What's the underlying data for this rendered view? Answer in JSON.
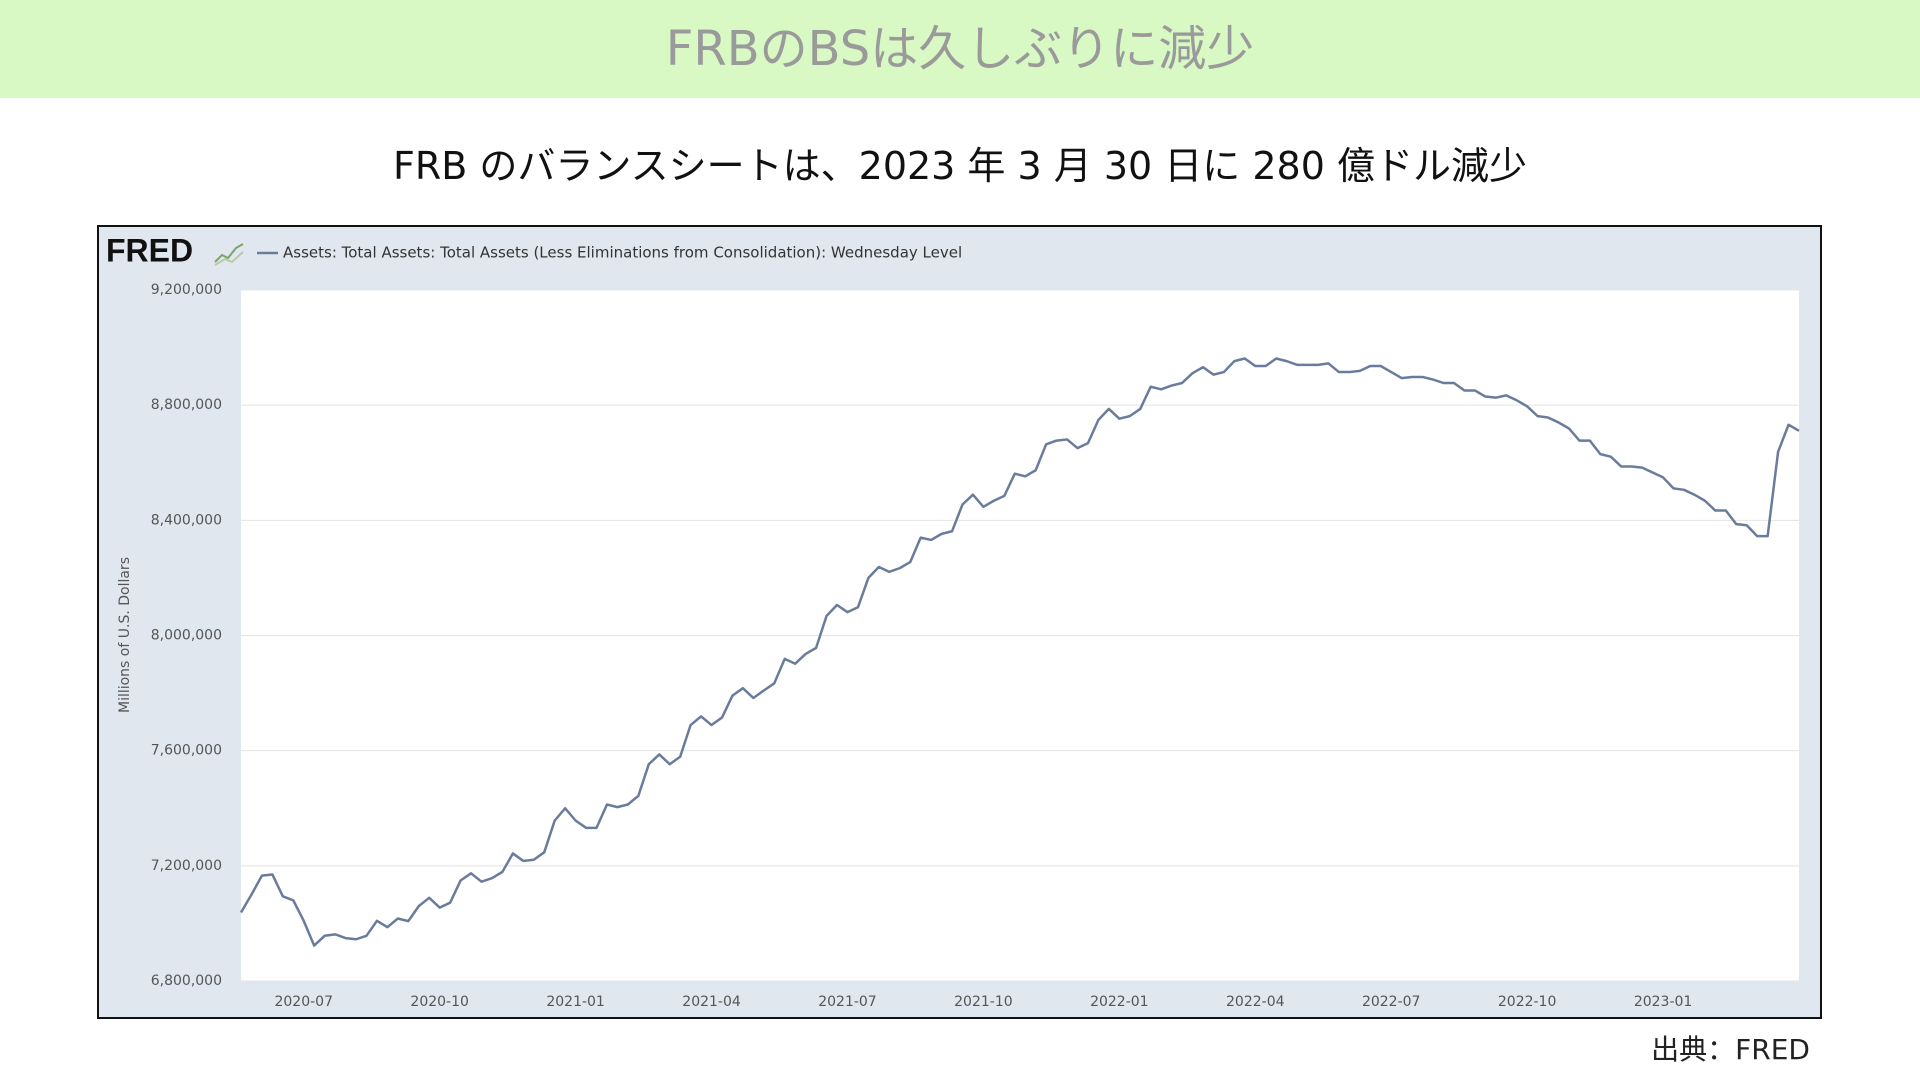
{
  "header": {
    "title": "FRBのBSは久しぶりに減少"
  },
  "subtitle": "FRB のバランスシートは、2023 年 3 月 30 日に 280 億ドル減少",
  "source": "出典：FRED",
  "chart_data": {
    "type": "line",
    "logo": "FRED",
    "ylabel": "Millions of U.S. Dollars",
    "grid": true,
    "ylim": [
      6800000,
      9200000
    ],
    "yticks": [
      {
        "value": 6800000,
        "label": "6,800,000"
      },
      {
        "value": 7200000,
        "label": "7,200,000"
      },
      {
        "value": 7600000,
        "label": "7,600,000"
      },
      {
        "value": 8000000,
        "label": "8,000,000"
      },
      {
        "value": 8400000,
        "label": "8,400,000"
      },
      {
        "value": 8800000,
        "label": "8,800,000"
      },
      {
        "value": 9200000,
        "label": "9,200,000"
      }
    ],
    "categories": [
      null,
      null,
      null,
      null,
      null,
      null,
      "2020-07",
      null,
      null,
      null,
      null,
      null,
      null,
      null,
      null,
      null,
      null,
      null,
      null,
      "2020-10",
      null,
      null,
      null,
      null,
      null,
      null,
      null,
      null,
      null,
      null,
      null,
      null,
      "2021-01",
      null,
      null,
      null,
      null,
      null,
      null,
      null,
      null,
      null,
      null,
      null,
      null,
      "2021-04",
      null,
      null,
      null,
      null,
      null,
      null,
      null,
      null,
      null,
      null,
      null,
      null,
      "2021-07",
      null,
      null,
      null,
      null,
      null,
      null,
      null,
      null,
      null,
      null,
      null,
      null,
      "2021-10",
      null,
      null,
      null,
      null,
      null,
      null,
      null,
      null,
      null,
      null,
      null,
      null,
      "2022-01",
      null,
      null,
      null,
      null,
      null,
      null,
      null,
      null,
      null,
      null,
      null,
      null,
      "2022-04",
      null,
      null,
      null,
      null,
      null,
      null,
      null,
      null,
      null,
      null,
      null,
      null,
      "2022-07",
      null,
      null,
      null,
      null,
      null,
      null,
      null,
      null,
      null,
      null,
      null,
      null,
      "2022-10",
      null,
      null,
      null,
      null,
      null,
      null,
      null,
      null,
      null,
      null,
      null,
      null,
      "2023-01",
      null,
      null,
      null,
      null,
      null,
      null,
      null,
      null,
      null,
      null,
      null,
      null,
      null
    ],
    "series": [
      {
        "name": "Assets: Total Assets: Total Assets (Less Eliminations from Consolidation): Wednesday Level",
        "color": "#6a7c9c",
        "values": [
          7038000,
          7100000,
          7166000,
          7170000,
          7094000,
          7080000,
          7009000,
          6923000,
          6957000,
          6962000,
          6949000,
          6945000,
          6957000,
          7009000,
          6987000,
          7017000,
          7008000,
          7060000,
          7089000,
          7055000,
          7072000,
          7149000,
          7174000,
          7145000,
          7157000,
          7179000,
          7243000,
          7217000,
          7221000,
          7247000,
          7357000,
          7400000,
          7357000,
          7332000,
          7332000,
          7413000,
          7404000,
          7413000,
          7443000,
          7553000,
          7587000,
          7553000,
          7579000,
          7689000,
          7719000,
          7689000,
          7715000,
          7791000,
          7817000,
          7783000,
          7809000,
          7834000,
          7919000,
          7902000,
          7936000,
          7957000,
          8068000,
          8106000,
          8081000,
          8098000,
          8200000,
          8238000,
          8221000,
          8234000,
          8255000,
          8340000,
          8332000,
          8353000,
          8362000,
          8455000,
          8489000,
          8447000,
          8468000,
          8485000,
          8562000,
          8553000,
          8574000,
          8664000,
          8677000,
          8681000,
          8651000,
          8668000,
          8749000,
          8787000,
          8753000,
          8762000,
          8787000,
          8864000,
          8855000,
          8868000,
          8877000,
          8911000,
          8932000,
          8906000,
          8915000,
          8953000,
          8962000,
          8936000,
          8936000,
          8962000,
          8953000,
          8940000,
          8940000,
          8940000,
          8945000,
          8915000,
          8915000,
          8919000,
          8936000,
          8936000,
          8915000,
          8894000,
          8898000,
          8898000,
          8889000,
          8877000,
          8877000,
          8851000,
          8851000,
          8830000,
          8826000,
          8834000,
          8817000,
          8796000,
          8762000,
          8757000,
          8740000,
          8719000,
          8677000,
          8677000,
          8630000,
          8621000,
          8587000,
          8587000,
          8583000,
          8566000,
          8549000,
          8511000,
          8506000,
          8489000,
          8468000,
          8434000,
          8434000,
          8387000,
          8383000,
          8345000,
          8345000,
          8638000,
          8732000,
          8711000
        ]
      }
    ]
  }
}
